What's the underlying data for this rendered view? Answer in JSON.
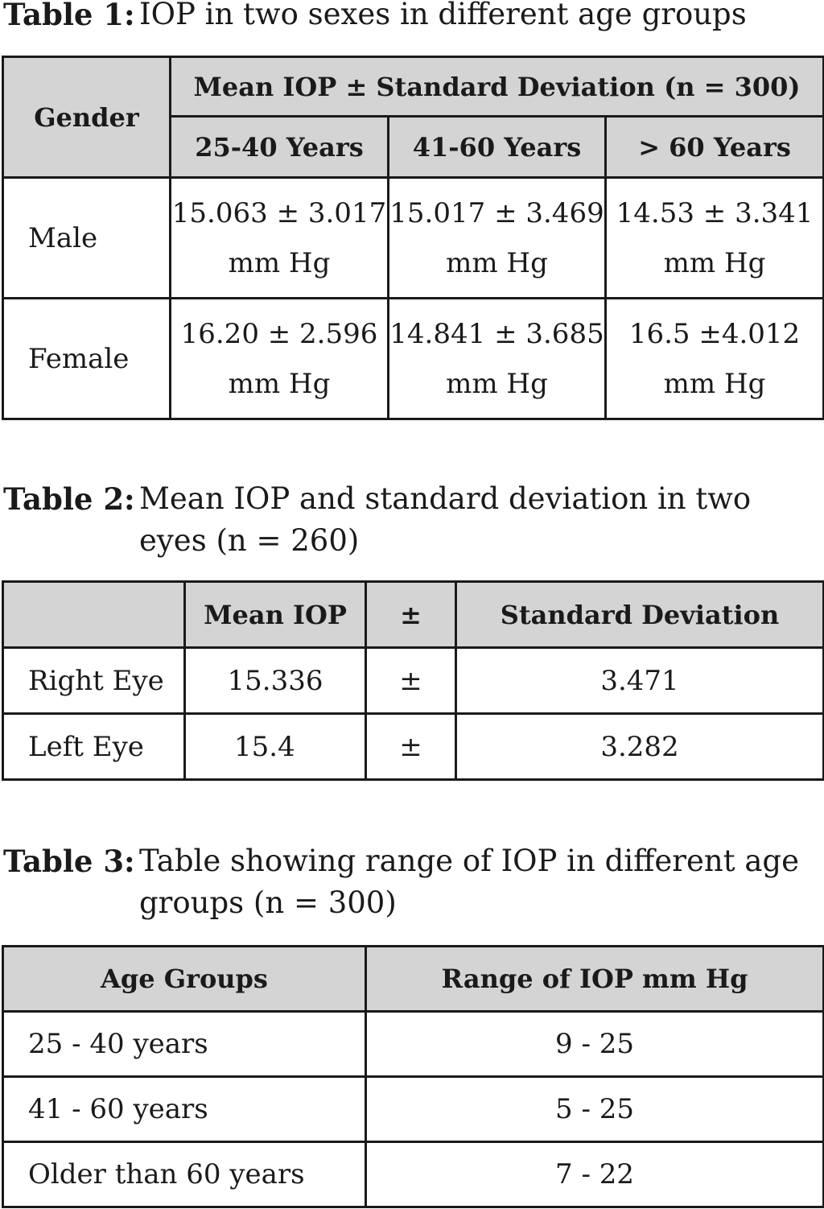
{
  "table1": {
    "label": "Table 1:",
    "title": "IOP in two sexes in different age groups",
    "header_gender": "Gender",
    "header_group": "Mean IOP ± Standard Deviation (n = 300)",
    "age_groups": [
      "25-40 Years",
      "41-60 Years",
      "> 60 Years"
    ],
    "rows": [
      {
        "gender": "Male",
        "cells": [
          {
            "value": "15.063 ± 3.017",
            "unit": "mm Hg"
          },
          {
            "value": "15.017 ± 3.469",
            "unit": "mm Hg"
          },
          {
            "value": "14.53 ± 3.341",
            "unit": "mm Hg"
          }
        ]
      },
      {
        "gender": "Female",
        "cells": [
          {
            "value": "16.20 ± 2.596",
            "unit": "mm Hg"
          },
          {
            "value": "14.841 ± 3.685",
            "unit": "mm Hg"
          },
          {
            "value": "16.5 ±4.012",
            "unit": "mm Hg"
          }
        ]
      }
    ]
  },
  "table2": {
    "label": "Table 2:",
    "title_line1": "Mean IOP and standard deviation in two",
    "title_line2": "eyes (n = 260)",
    "headers": [
      "",
      "Mean IOP",
      "±",
      "Standard Deviation"
    ],
    "rows": [
      {
        "eye": "Right Eye",
        "mean": "15.336",
        "pm": "±",
        "sd": "3.471"
      },
      {
        "eye": "Left Eye",
        "mean": "15.4",
        "pm": "±",
        "sd": "3.282"
      }
    ]
  },
  "table3": {
    "label": "Table 3:",
    "title_line1": "Table showing range of IOP in different age",
    "title_line2": "groups (n = 300)",
    "headers": [
      "Age Groups",
      "Range of IOP mm Hg"
    ],
    "rows": [
      {
        "group": "25 - 40 years",
        "range": "9 - 25"
      },
      {
        "group": "41 - 60 years",
        "range": "5 - 25"
      },
      {
        "group": "Older than 60 years",
        "range": "7 - 22"
      }
    ]
  }
}
